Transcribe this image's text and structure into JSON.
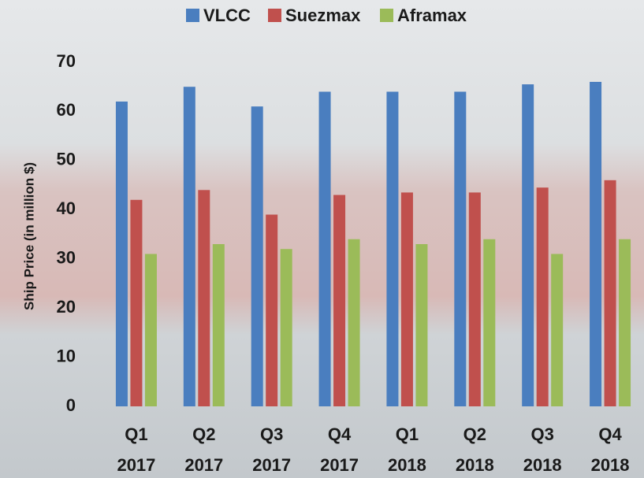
{
  "chart_data": {
    "type": "bar",
    "y_label": "Ship Price (in million $)",
    "categories": [
      [
        "Q1",
        "2017"
      ],
      [
        "Q2",
        "2017"
      ],
      [
        "Q3",
        "2017"
      ],
      [
        "Q4",
        "2017"
      ],
      [
        "Q1",
        "2018"
      ],
      [
        "Q2",
        "2018"
      ],
      [
        "Q3",
        "2018"
      ],
      [
        "Q4",
        "2018"
      ]
    ],
    "series": [
      {
        "name": "VLCC",
        "color": "#4a7ebf",
        "values": [
          62,
          65,
          61,
          64,
          64,
          64,
          65.5,
          66
        ]
      },
      {
        "name": "Suezmax",
        "color": "#c0504d",
        "values": [
          42,
          44,
          39,
          43,
          43.5,
          43.5,
          44.5,
          46
        ]
      },
      {
        "name": "Aframax",
        "color": "#9bbb59",
        "values": [
          31,
          33,
          32,
          34,
          33,
          34,
          31,
          34
        ]
      }
    ],
    "ylim": [
      0,
      70
    ],
    "yticks": [
      0,
      10,
      20,
      30,
      40,
      50,
      60,
      70
    ],
    "grid": false,
    "legend": "top"
  }
}
